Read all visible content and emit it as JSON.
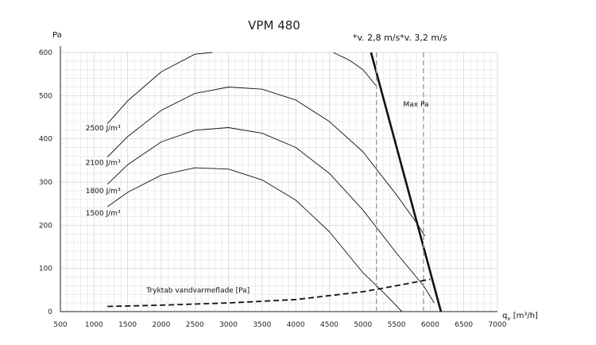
{
  "chart_data": {
    "type": "line",
    "title": "VPM 480",
    "ylabel": "Pa",
    "xlabel": "q_v [m³/h]",
    "xlabel_main": "q",
    "xlabel_sub": "v",
    "xlabel_unit": " [m³/h]",
    "xlim": [
      500,
      7000
    ],
    "ylim": [
      0,
      600
    ],
    "x_ticks": [
      500,
      1000,
      1500,
      2000,
      2500,
      3000,
      3500,
      4000,
      4500,
      5000,
      5500,
      6000,
      6500,
      7000
    ],
    "y_ticks": [
      0,
      100,
      200,
      300,
      400,
      500,
      600
    ],
    "grid": true,
    "series": [
      {
        "name": "2500 J/m³",
        "style": "solid",
        "x": [
          1200,
          1500,
          2000,
          2500,
          2760
        ],
        "y": [
          435,
          488,
          555,
          596,
          600
        ]
      },
      {
        "name": "",
        "style": "solid",
        "x": [
          4560,
          4800,
          5000,
          5200
        ],
        "y": [
          600,
          582,
          560,
          522
        ]
      },
      {
        "name": "2100 J/m³",
        "style": "solid",
        "x": [
          1200,
          1500,
          2000,
          2500,
          3000,
          3500,
          4000,
          4500,
          5000,
          5500,
          5800,
          5920
        ],
        "y": [
          358,
          405,
          466,
          505,
          520,
          515,
          490,
          440,
          370,
          270,
          205,
          175
        ]
      },
      {
        "name": "1800 J/m³",
        "style": "solid",
        "x": [
          1200,
          1500,
          2000,
          2500,
          3000,
          3500,
          4000,
          4500,
          5000,
          5500,
          5900,
          6060
        ],
        "y": [
          295,
          340,
          393,
          420,
          426,
          413,
          380,
          320,
          235,
          135,
          60,
          20
        ]
      },
      {
        "name": "1500 J/m³",
        "style": "solid",
        "x": [
          1200,
          1500,
          2000,
          2500,
          3000,
          3500,
          4000,
          4500,
          5000,
          5300,
          5580
        ],
        "y": [
          243,
          276,
          316,
          333,
          330,
          305,
          258,
          185,
          90,
          45,
          0
        ]
      },
      {
        "name": "Max Pa",
        "style": "bold",
        "x": [
          5120,
          6160
        ],
        "y": [
          600,
          0
        ]
      },
      {
        "name": "Tryktab vandvarmeflade [Pa]",
        "style": "dashed",
        "x": [
          1200,
          2000,
          3000,
          4000,
          5000,
          5500,
          6000
        ],
        "y": [
          12,
          15,
          20,
          28,
          46,
          60,
          75
        ]
      }
    ],
    "vlines": [
      {
        "label": "*v. 2,8 m/s",
        "x": 5200
      },
      {
        "label": "*v. 3,2 m/s",
        "x": 5900
      }
    ],
    "annotations": [
      {
        "text": "2500 J/m³",
        "x": 875,
        "y": 425
      },
      {
        "text": "2100 J/m³",
        "x": 875,
        "y": 345
      },
      {
        "text": "1800 J/m³",
        "x": 875,
        "y": 280
      },
      {
        "text": "1500 J/m³",
        "x": 875,
        "y": 228
      },
      {
        "text": "Max Pa",
        "x": 5600,
        "y": 480
      },
      {
        "text": "Tryktab vandvarmeflade [Pa]",
        "x": 1780,
        "y": 50
      }
    ]
  }
}
